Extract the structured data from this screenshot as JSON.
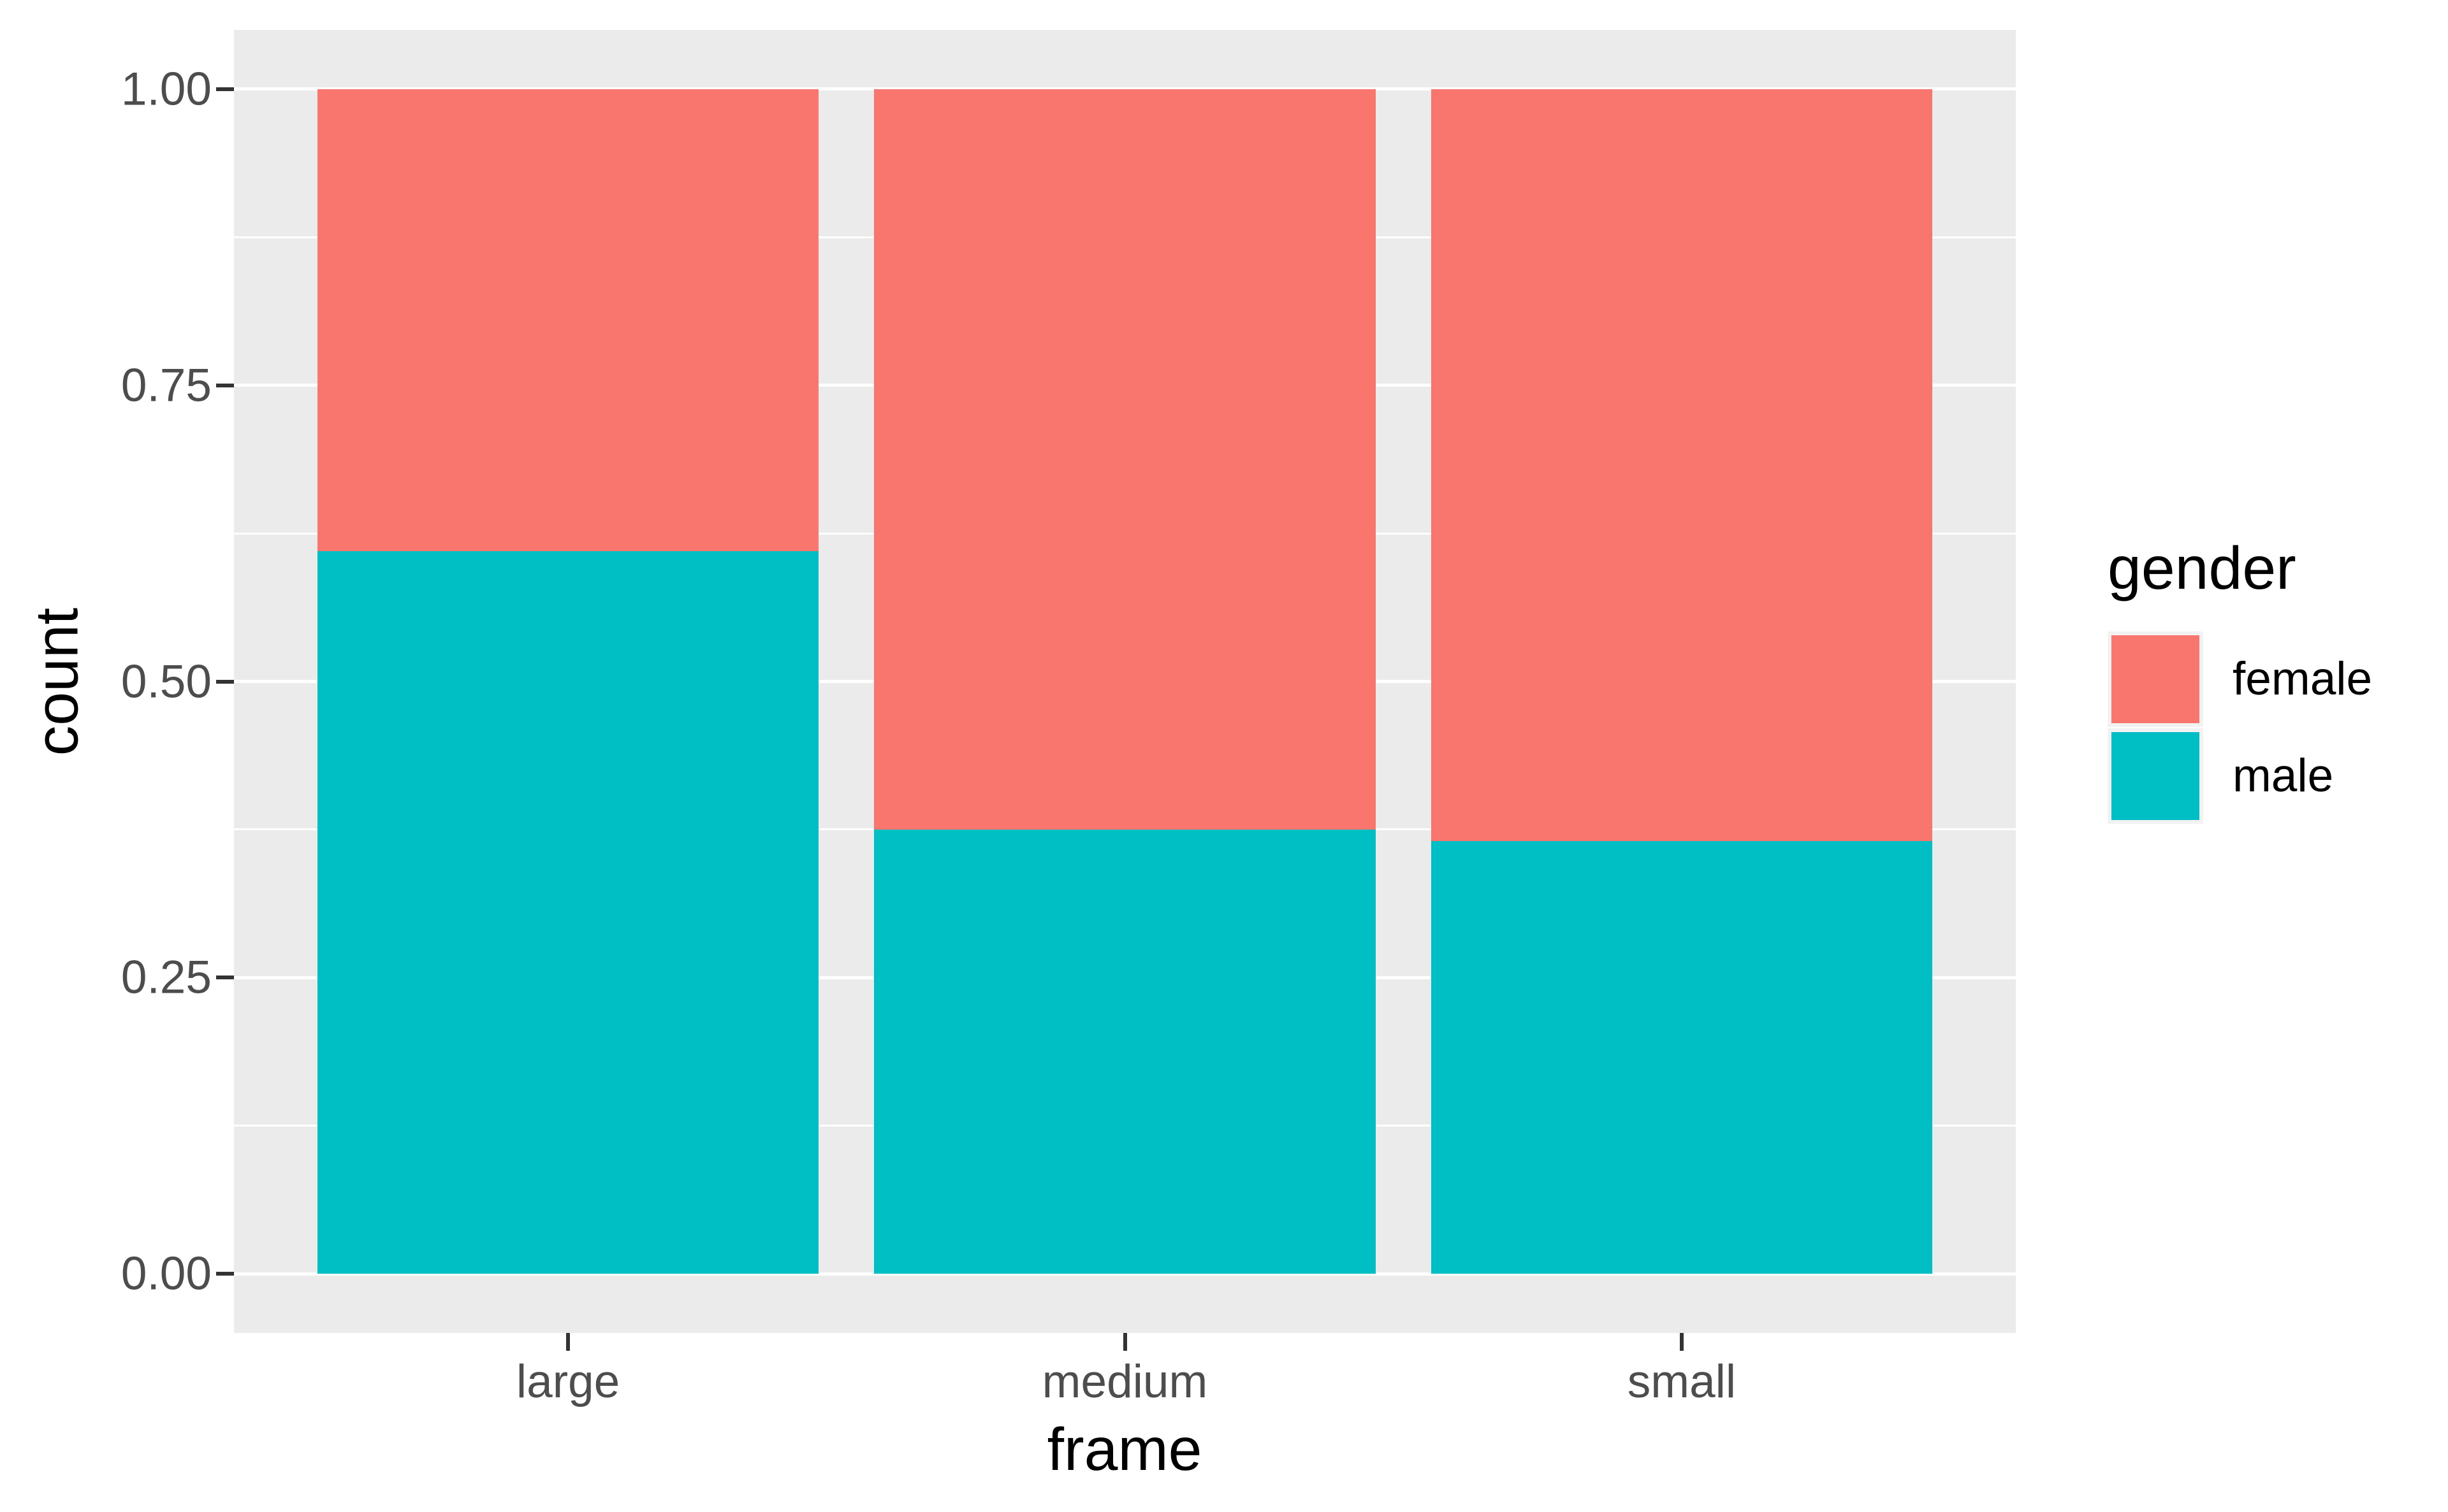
{
  "chart_data": {
    "type": "bar",
    "mode": "stacked-fill",
    "title": "",
    "xlabel": "frame",
    "ylabel": "count",
    "categories": [
      "large",
      "medium",
      "small"
    ],
    "series": [
      {
        "name": "female",
        "color": "#F8766D",
        "values": [
          0.39,
          0.625,
          0.635
        ]
      },
      {
        "name": "male",
        "color": "#00BFC4",
        "values": [
          0.61,
          0.375,
          0.365
        ]
      }
    ],
    "ylim": [
      0,
      1
    ],
    "yticks": {
      "values": [
        0,
        0.25,
        0.5,
        0.75,
        1
      ],
      "labels": [
        "0.00",
        "0.25",
        "0.50",
        "0.75",
        "1.00"
      ]
    },
    "yminor": [
      0.125,
      0.375,
      0.625,
      0.875
    ],
    "bar_width": 0.9,
    "grid": true,
    "legend_position": "right",
    "legend_title": "gender",
    "colors": {
      "page_background": "#FFFFFF",
      "panel_background": "#EBEBEB",
      "grid": "#FFFFFF",
      "tick": "#333333",
      "axis_text": "#4D4D4D",
      "axis_title": "#000000",
      "legend_key_background": "#F2F2F2"
    }
  },
  "legend": {
    "title": "gender",
    "items": [
      {
        "label": "female"
      },
      {
        "label": "male"
      }
    ]
  }
}
